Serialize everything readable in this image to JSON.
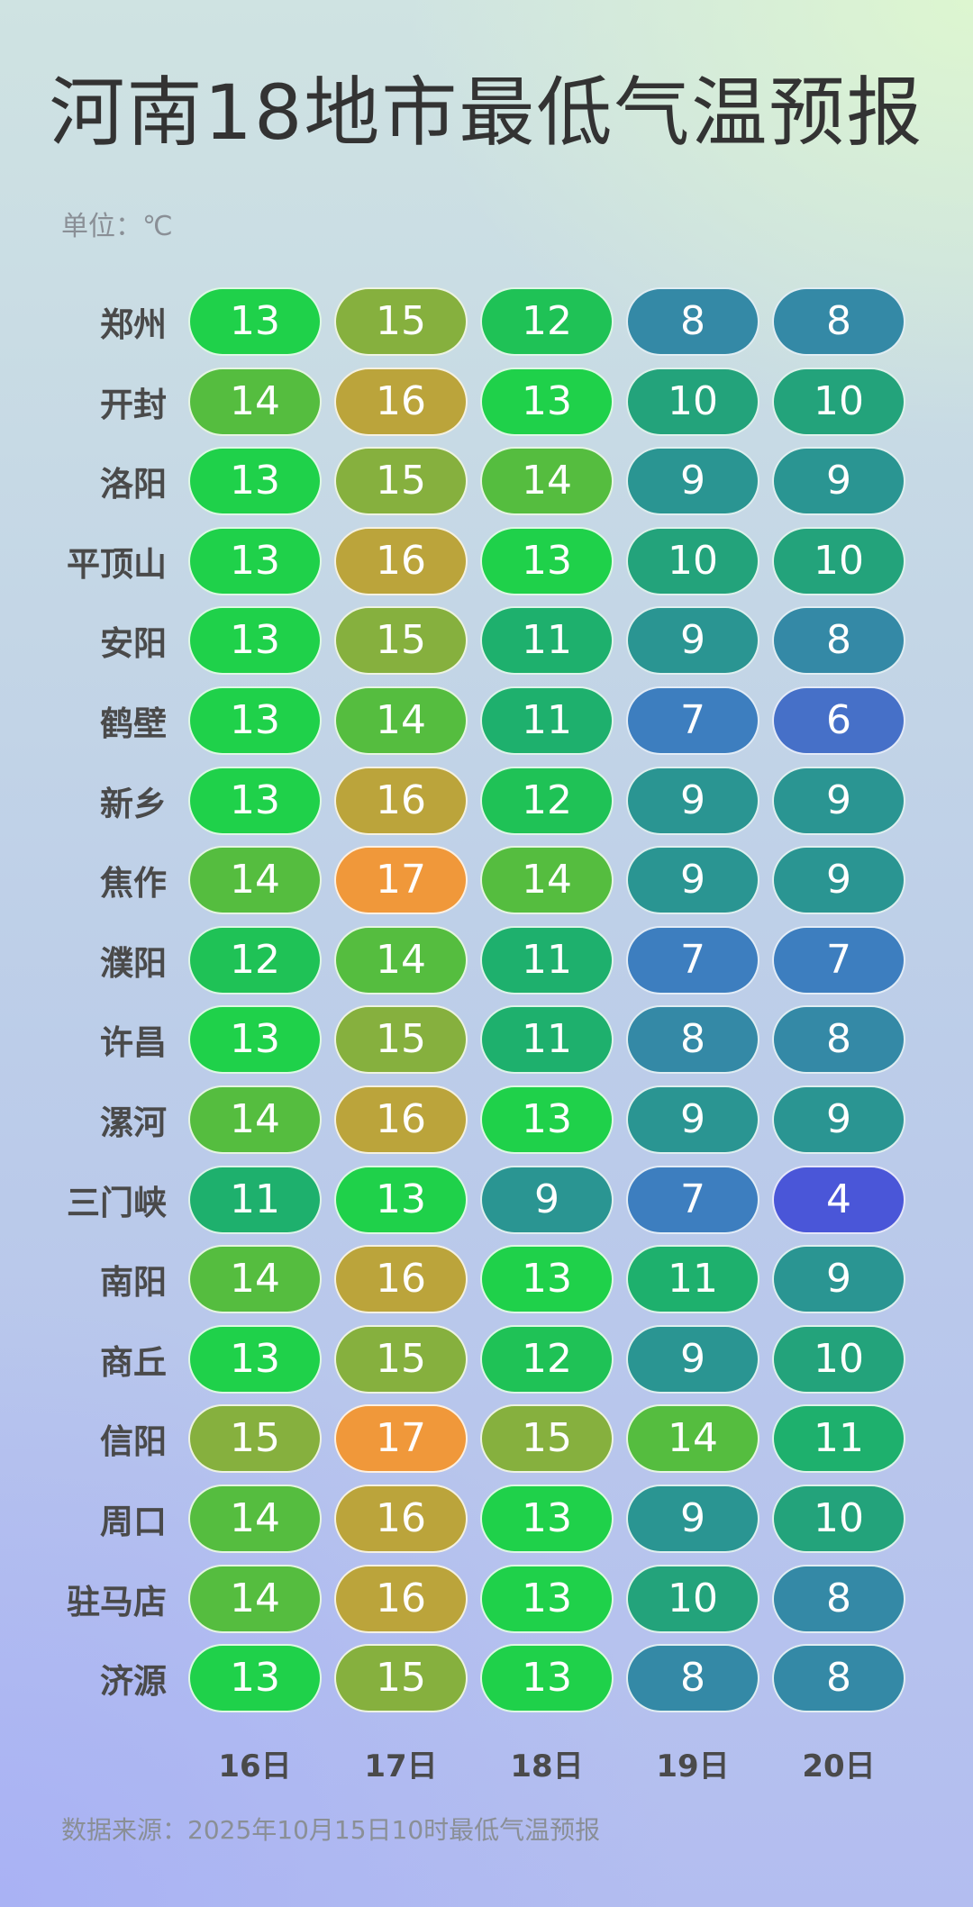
{
  "header": {
    "title": "河南18地市最低气温预报",
    "unit": "单位：℃"
  },
  "chart_data": {
    "type": "table",
    "categories": [
      "16日",
      "17日",
      "18日",
      "19日",
      "20日"
    ],
    "rows": [
      {
        "city": "郑州",
        "values": [
          13,
          15,
          12,
          8,
          8
        ]
      },
      {
        "city": "开封",
        "values": [
          14,
          16,
          13,
          10,
          10
        ]
      },
      {
        "city": "洛阳",
        "values": [
          13,
          15,
          14,
          9,
          9
        ]
      },
      {
        "city": "平顶山",
        "values": [
          13,
          16,
          13,
          10,
          10
        ]
      },
      {
        "city": "安阳",
        "values": [
          13,
          15,
          11,
          9,
          8
        ]
      },
      {
        "city": "鹤壁",
        "values": [
          13,
          14,
          11,
          7,
          6
        ]
      },
      {
        "city": "新乡",
        "values": [
          13,
          16,
          12,
          9,
          9
        ]
      },
      {
        "city": "焦作",
        "values": [
          14,
          17,
          14,
          9,
          9
        ]
      },
      {
        "city": "濮阳",
        "values": [
          12,
          14,
          11,
          7,
          7
        ]
      },
      {
        "city": "许昌",
        "values": [
          13,
          15,
          11,
          8,
          8
        ]
      },
      {
        "city": "漯河",
        "values": [
          14,
          16,
          13,
          9,
          9
        ]
      },
      {
        "city": "三门峡",
        "values": [
          11,
          13,
          9,
          7,
          4
        ]
      },
      {
        "city": "南阳",
        "values": [
          14,
          16,
          13,
          11,
          9
        ]
      },
      {
        "city": "商丘",
        "values": [
          13,
          15,
          12,
          9,
          10
        ]
      },
      {
        "city": "信阳",
        "values": [
          15,
          17,
          15,
          14,
          11
        ]
      },
      {
        "city": "周口",
        "values": [
          14,
          16,
          13,
          9,
          10
        ]
      },
      {
        "city": "驻马店",
        "values": [
          14,
          16,
          13,
          10,
          8
        ]
      },
      {
        "city": "济源",
        "values": [
          13,
          15,
          13,
          8,
          8
        ]
      }
    ],
    "color_scale": {
      "4": "#4a56d8",
      "6": "#4670c8",
      "7": "#3d7ebf",
      "8": "#3489a6",
      "9": "#2a9592",
      "10": "#23a37b",
      "11": "#1eb06d",
      "12": "#1fc256",
      "13": "#1fd14a",
      "14": "#55bd3f",
      "15": "#86b03e",
      "16": "#bba43b",
      "17": "#f0983a"
    }
  },
  "footer": {
    "source": "数据来源：2025年10月15日10时最低气温预报"
  }
}
